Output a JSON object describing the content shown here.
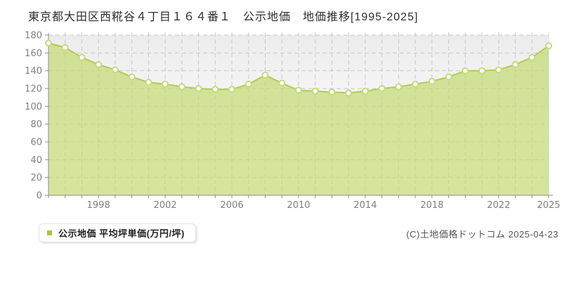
{
  "title": "東京都大田区西糀谷４丁目１６４番１　公示地価　地価推移[1995-2025]",
  "legend": {
    "label": "公示地価 平均坪単価(万円/坪)"
  },
  "footer": {
    "copyright": "(C)土地価格ドットコム 2025-04-23"
  },
  "chart_data": {
    "type": "area",
    "title": "東京都大田区西糀谷４丁目１６４番１　公示地価　地価推移[1995-2025]",
    "series_name": "公示地価 平均坪単価(万円/坪)",
    "ylabel": "平均坪単価(万円/坪)",
    "x": [
      1995,
      1996,
      1997,
      1998,
      1999,
      2000,
      2001,
      2002,
      2003,
      2004,
      2005,
      2006,
      2007,
      2008,
      2009,
      2010,
      2011,
      2012,
      2013,
      2014,
      2015,
      2016,
      2017,
      2018,
      2019,
      2020,
      2021,
      2022,
      2023,
      2024,
      2025
    ],
    "values": [
      171,
      166,
      155,
      147,
      141,
      133,
      127,
      125,
      122,
      120,
      119,
      119,
      125,
      135,
      126,
      118,
      117,
      116,
      115,
      117,
      120,
      122,
      125,
      128,
      133,
      140,
      140,
      141,
      147,
      155,
      168
    ],
    "ylim": [
      0,
      180
    ],
    "ytick_step": 20,
    "xticks": [
      1998,
      2002,
      2006,
      2010,
      2014,
      2018,
      2022,
      2025
    ],
    "grid": "dashed",
    "legend_position": "bottom-left",
    "colors": {
      "area_fill": "#c1d86d",
      "line": "#b2cb4e",
      "marker_fill": "#ffffff",
      "marker_stroke": "#c6da7d",
      "legend_marker": "#a6c934",
      "grid": "#c9c9c9",
      "axis": "#8c8c8c",
      "tick_label": "#808080"
    }
  }
}
